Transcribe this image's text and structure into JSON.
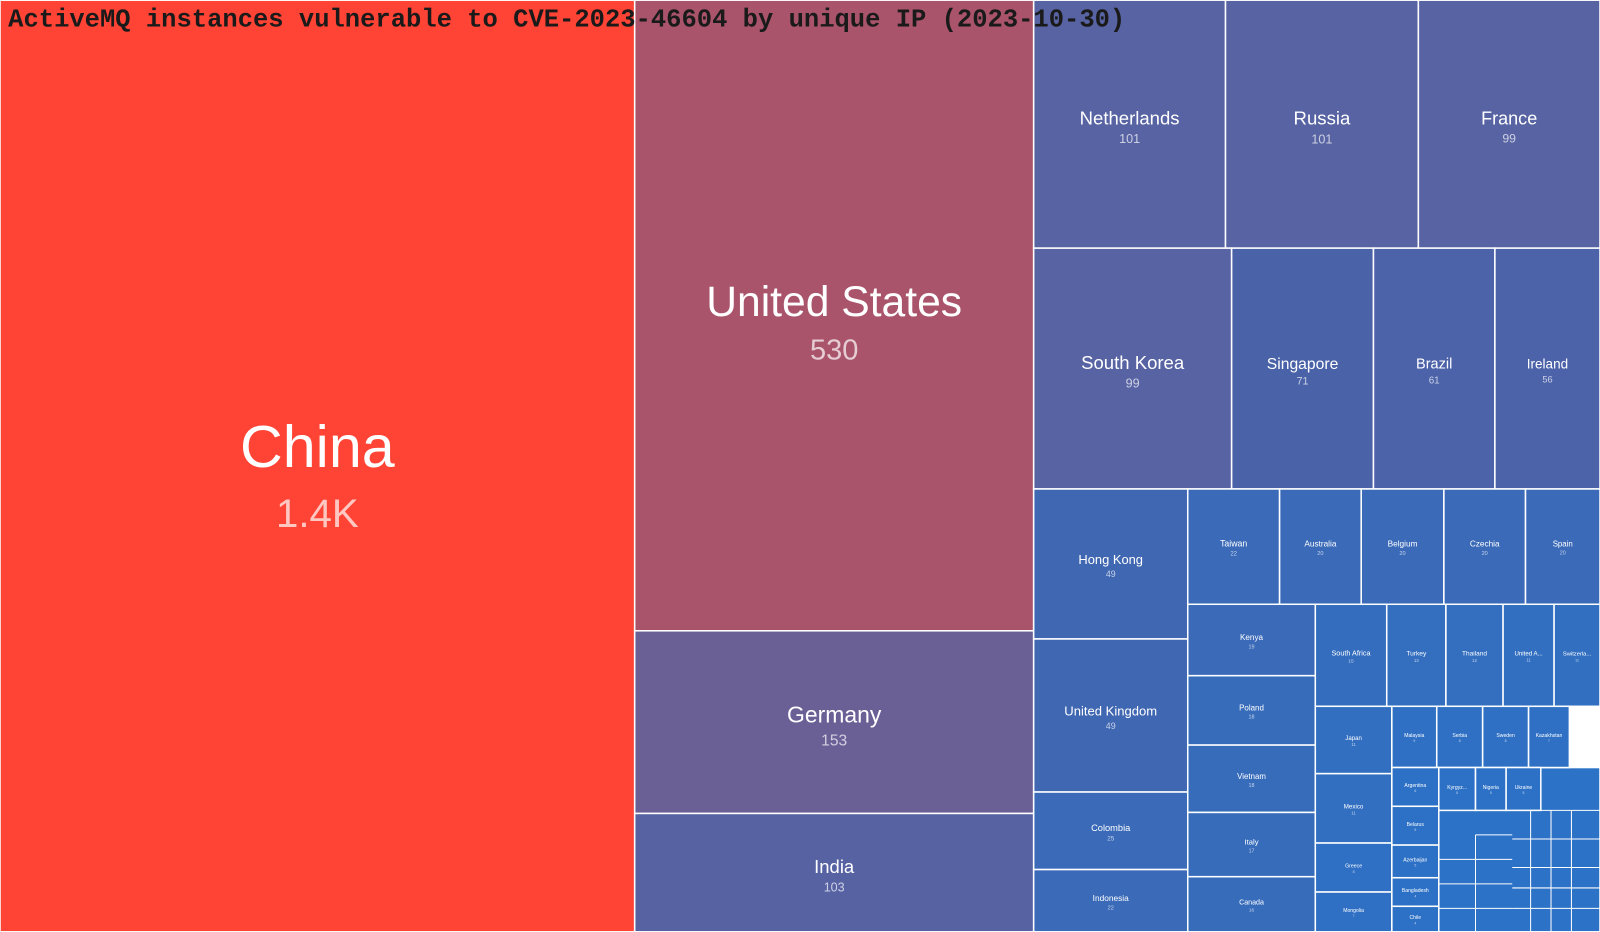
{
  "chart_data": {
    "type": "treemap",
    "title": "ActiveMQ instances vulnerable to CVE-2023-46604 by unique IP (2023-10-30)",
    "categories": [
      "China",
      "United States",
      "Germany",
      "India",
      "Netherlands",
      "Russia",
      "France",
      "South Korea",
      "Singapore",
      "Brazil",
      "Ireland",
      "Hong Kong",
      "United Kingdom",
      "Colombia",
      "Indonesia",
      "Taiwan",
      "Australia",
      "Belgium",
      "Czechia",
      "Spain",
      "Kenya",
      "Poland",
      "Vietnam",
      "Italy",
      "Canada",
      "South Africa",
      "Turkey",
      "Thailand",
      "United A...",
      "Switzerla...",
      "Japan",
      "Mexico",
      "Greece",
      "Mongolia",
      "Malaysia",
      "Serbia",
      "Sweden",
      "Kazakhstan",
      "Argentina",
      "Kyrgyz...",
      "Nigeria",
      "Ukraine",
      "Belarus",
      "Azerbaijan",
      "Bangladesh",
      "Chile"
    ],
    "values": [
      1400,
      530,
      153,
      103,
      101,
      101,
      99,
      99,
      71,
      61,
      56,
      49,
      49,
      25,
      22,
      22,
      20,
      20,
      20,
      20,
      19,
      18,
      18,
      17,
      16,
      15,
      13,
      12,
      11,
      11,
      11,
      11,
      8,
      7,
      9,
      8,
      8,
      7,
      6,
      5,
      5,
      5,
      5,
      5,
      4,
      4
    ],
    "value_labels": [
      "1.4K",
      "530",
      "153",
      "103",
      "101",
      "101",
      "99",
      "99",
      "71",
      "61",
      "56",
      "49",
      "49",
      "25",
      "22",
      "22",
      "20",
      "20",
      "20",
      "20",
      "19",
      "18",
      "18",
      "17",
      "16",
      "15",
      "13",
      "12",
      "11",
      "11",
      "11",
      "11",
      "8",
      "7",
      "9",
      "8",
      "8",
      "7",
      "6",
      "5",
      "5",
      "5",
      "5",
      "5",
      "4",
      "4"
    ],
    "colors": [
      "#ff4435",
      "#a9546b",
      "#6a6096",
      "#5762a3",
      "#5763a2",
      "#5763a2",
      "#5763a2",
      "#5763a2",
      "#4a62a8",
      "#4c63a9",
      "#4c63a9",
      "#4067b2",
      "#4067b2",
      "#3a6ab8",
      "#3a6ab8",
      "#3a6ab8",
      "#3a6ab8",
      "#3a6ab8",
      "#3a6ab8",
      "#3a6ab8",
      "#3a6ab8",
      "#376cbb",
      "#376cbb",
      "#376cbb",
      "#376cbb",
      "#346dbe",
      "#336ebf",
      "#336ebf",
      "#326fc1",
      "#326fc1",
      "#326fc1",
      "#326fc1",
      "#2f70c4",
      "#2f70c4",
      "#2f70c4",
      "#2f70c4",
      "#2f70c4",
      "#2f70c4",
      "#2d71c6",
      "#2d71c6",
      "#2d71c6",
      "#2d71c6",
      "#2d71c6",
      "#2d71c6",
      "#2d71c6",
      "#2d71c6"
    ]
  }
}
